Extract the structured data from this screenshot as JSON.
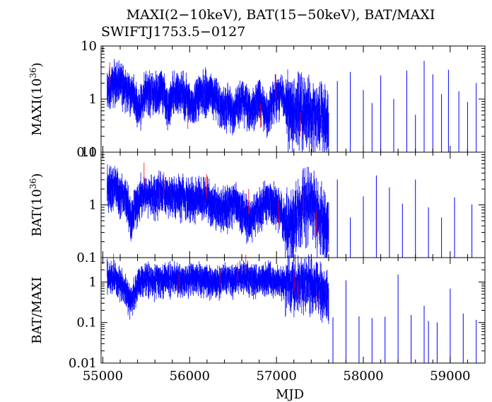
{
  "title": "MAXI(2−10keV), BAT(15−50keV), BAT/MAXI",
  "subtitle": "SWIFTJ1753.5−0127",
  "colors": {
    "data": "#0000ff",
    "error": "#ff0000",
    "axis": "#000000"
  },
  "chart_data": [
    {
      "type": "line",
      "panel": "maxi",
      "ylabel": "MAXI(10",
      "ylabel_sup": "36",
      "ylabel_tail": ")",
      "yscale": "log",
      "ylim": [
        0.1,
        10
      ],
      "yticks": [
        {
          "v": 10,
          "label": "10"
        },
        {
          "v": 1,
          "label": "1"
        },
        {
          "v": 0.1,
          "label": "0.1"
        }
      ],
      "x": [
        55050,
        55150,
        55250,
        55350,
        55420,
        55500,
        55600,
        55700,
        55750,
        55800,
        55900,
        56000,
        56050,
        56100,
        56200,
        56300,
        56400,
        56450,
        56500,
        56600,
        56700,
        56800,
        56900,
        57000,
        57050,
        57100,
        57200,
        57300,
        57400,
        57500,
        57600
      ],
      "y": [
        1.5,
        2.2,
        1.8,
        1.2,
        0.7,
        1.5,
        1.3,
        1.4,
        0.6,
        1.3,
        1.4,
        1.0,
        0.7,
        1.3,
        1.5,
        1.0,
        0.6,
        0.9,
        0.5,
        1.1,
        0.6,
        1.0,
        0.5,
        1.2,
        1.3,
        0.8,
        0.7,
        0.6,
        0.5,
        0.5,
        0.4
      ],
      "spikes": [
        57700,
        57850,
        58000,
        58100,
        58200,
        58350,
        58500,
        58600,
        58700,
        58800,
        58900,
        58980,
        59100,
        59200,
        59300
      ]
    },
    {
      "type": "line",
      "panel": "bat",
      "ylabel": "BAT(10",
      "ylabel_sup": "36",
      "ylabel_tail": ")",
      "yscale": "log",
      "ylim": [
        0.1,
        10
      ],
      "yticks": [
        {
          "v": 10,
          "label": "10"
        },
        {
          "v": 1,
          "label": "1"
        },
        {
          "v": 0.1,
          "label": "0.1"
        }
      ],
      "x": [
        55050,
        55150,
        55250,
        55330,
        55420,
        55500,
        55600,
        55700,
        55800,
        55900,
        56000,
        56050,
        56100,
        56200,
        56300,
        56400,
        56500,
        56600,
        56700,
        56800,
        56900,
        57000,
        57100,
        57150,
        57200,
        57300,
        57400,
        57500,
        57600
      ],
      "y": [
        2.3,
        2.1,
        1.5,
        0.5,
        1.4,
        1.7,
        1.6,
        1.8,
        1.6,
        1.5,
        1.3,
        1.3,
        1.6,
        1.3,
        1.0,
        0.8,
        1.2,
        0.8,
        0.5,
        0.9,
        1.2,
        1.0,
        0.5,
        0.4,
        0.5,
        1.0,
        1.3,
        0.6,
        0.4
      ],
      "spikes": [
        57700,
        57850,
        58000,
        58150,
        58300,
        58450,
        58600,
        58750,
        58900,
        59050,
        59250
      ]
    },
    {
      "type": "line",
      "panel": "ratio",
      "ylabel": "BAT/MAXI",
      "yscale": "log",
      "ylim": [
        0.01,
        4
      ],
      "yticks": [
        {
          "v": 1,
          "label": "1"
        },
        {
          "v": 0.1,
          "label": "0.1"
        },
        {
          "v": 0.01,
          "label": "0.01"
        }
      ],
      "x": [
        55050,
        55150,
        55250,
        55330,
        55420,
        55500,
        55600,
        55700,
        55800,
        55900,
        56000,
        56100,
        56200,
        56300,
        56400,
        56500,
        56600,
        56700,
        56800,
        56900,
        57000,
        57100,
        57200,
        57300,
        57400,
        57500,
        57600
      ],
      "y": [
        1.5,
        1.2,
        0.7,
        0.3,
        1.0,
        1.3,
        1.1,
        1.2,
        1.3,
        1.1,
        1.3,
        1.3,
        1.2,
        1.1,
        1.3,
        1.2,
        1.4,
        1.2,
        1.1,
        1.3,
        1.2,
        1.0,
        0.9,
        1.0,
        1.0,
        0.8,
        0.5
      ],
      "spikes": [
        57650,
        57800,
        57950,
        58100,
        58250,
        58400,
        58550,
        58700,
        58750,
        58850,
        59000,
        59150,
        59300
      ]
    }
  ],
  "xaxis": {
    "label": "MJD",
    "xlim": [
      54980,
      59400
    ],
    "ticks": [
      55000,
      56000,
      57000,
      58000,
      59000
    ]
  }
}
